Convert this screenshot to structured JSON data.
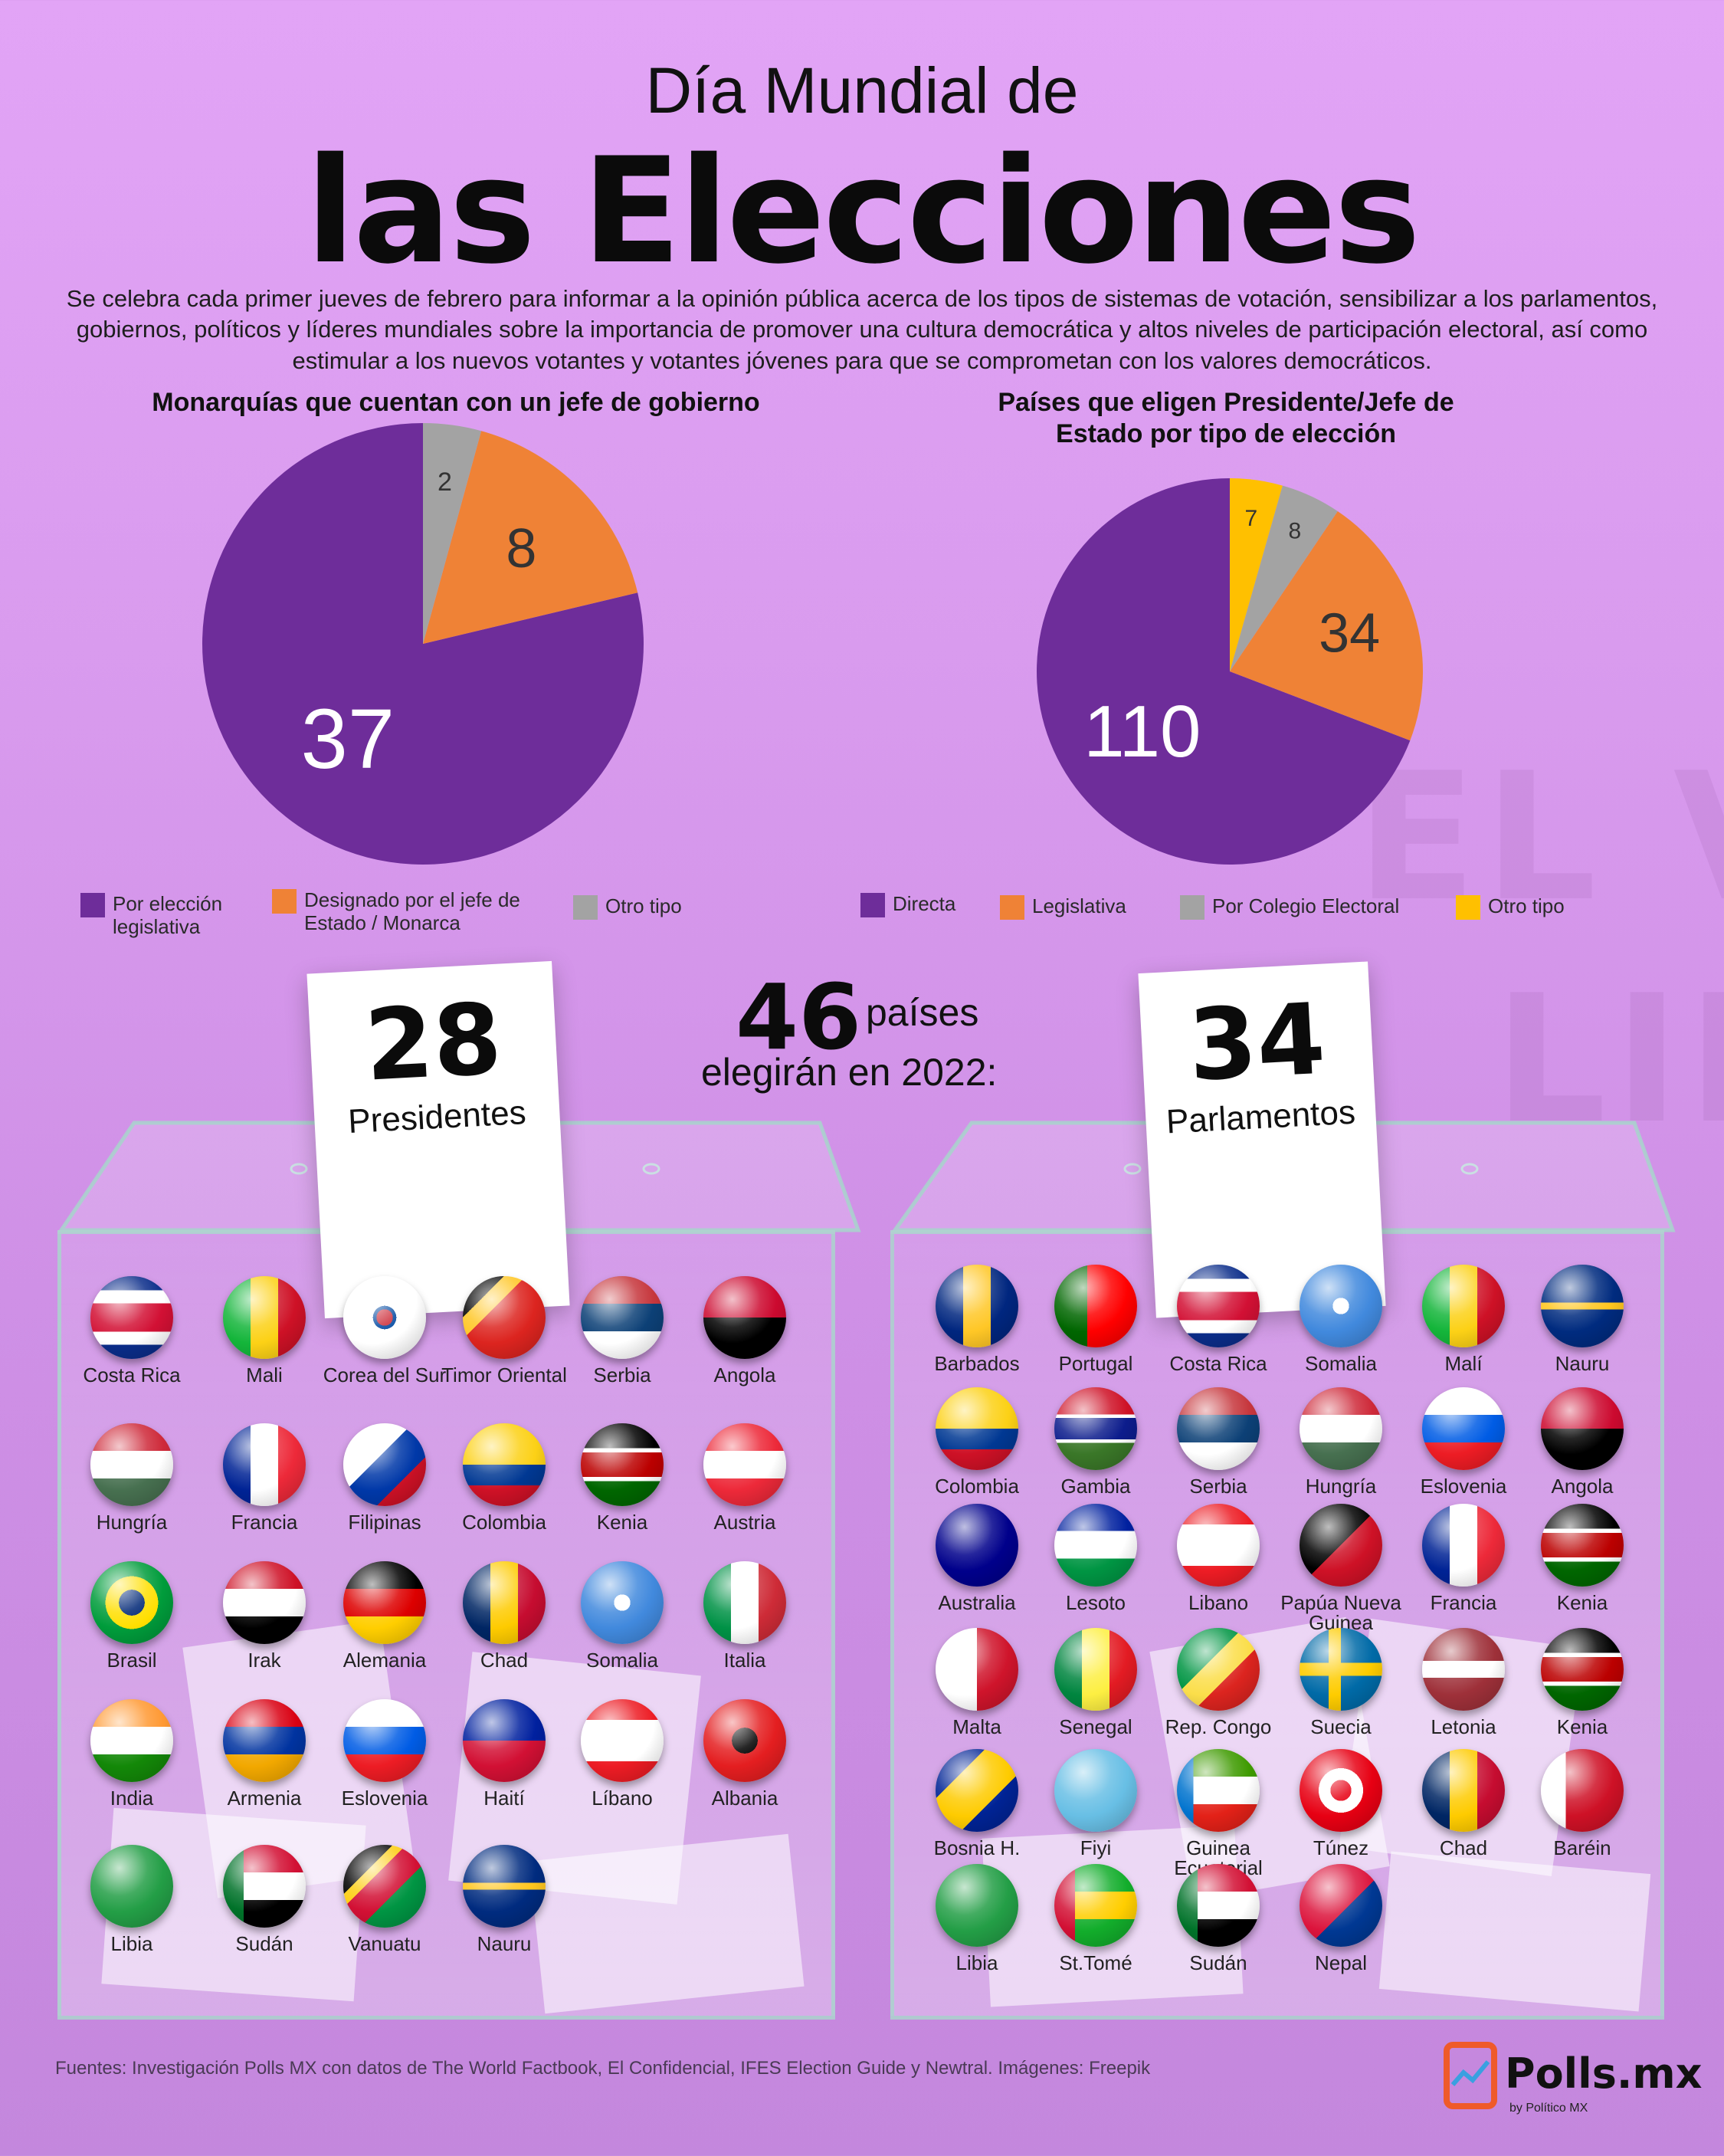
{
  "header": {
    "title_line1": "Día Mundial de",
    "title_line2": "las Elecciones",
    "intro": "Se celebra cada primer jueves de febrero para informar a la opinión pública acerca de los tipos de sistemas de votación, sensibilizar a los parlamentos, gobiernos, políticos y líderes mundiales sobre la importancia de promover una cultura democrática y altos niveles de participación electoral, así como estimular a los nuevos votantes y votantes jóvenes para que se comprometan con los valores democráticos."
  },
  "chart_data": [
    {
      "type": "pie",
      "title": "Monarquías que cuentan con un jefe de gobierno",
      "categories": [
        "Por elección legislativa",
        "Designado por el jefe de Estado / Monarca",
        "Otro tipo"
      ],
      "values": [
        37,
        8,
        2
      ],
      "colors": [
        "#6e2d9a",
        "#ef8236",
        "#a3a3a3"
      ],
      "legend_position": "bottom"
    },
    {
      "type": "pie",
      "title": "Países que eligen Presidente/Jefe de Estado por tipo de elección",
      "categories": [
        "Directa",
        "Legislativa",
        "Por Colegio Electoral",
        "Otro tipo"
      ],
      "values": [
        110,
        34,
        8,
        7
      ],
      "colors": [
        "#6e2d9a",
        "#ef8236",
        "#a3a3a3",
        "#ffc000"
      ],
      "legend_position": "bottom"
    }
  ],
  "legend1": [
    {
      "label": "Por elección legislativa",
      "color": "#6e2d9a"
    },
    {
      "label": "Designado por el jefe de Estado / Monarca",
      "color": "#ef8236"
    },
    {
      "label": "Otro tipo",
      "color": "#a3a3a3"
    }
  ],
  "legend2": [
    {
      "label": "Directa",
      "color": "#6e2d9a"
    },
    {
      "label": "Legislativa",
      "color": "#ef8236"
    },
    {
      "label": "Por Colegio Electoral",
      "color": "#a3a3a3"
    },
    {
      "label": "Otro tipo",
      "color": "#ffc000"
    }
  ],
  "summary": {
    "count": "46",
    "word": "países",
    "line2": "elegirán en 2022:"
  },
  "presidents": {
    "count": "28",
    "label": "Presidentes",
    "countries": [
      "Costa Rica",
      "Mali",
      "Corea del Sur",
      "Timor Oriental",
      "Serbia",
      "Angola",
      "Hungría",
      "Francia",
      "Filipinas",
      "Colombia",
      "Kenia",
      "Austria",
      "Brasil",
      "Irak",
      "Alemania",
      "Chad",
      "Somalia",
      "Italia",
      "India",
      "Armenia",
      "Eslovenia",
      "Haití",
      "Líbano",
      "Albania",
      "Libia",
      "Sudán",
      "Vanuatu",
      "Nauru"
    ]
  },
  "parliaments": {
    "count": "34",
    "label": "Parlamentos",
    "countries": [
      "Barbados",
      "Portugal",
      "Costa Rica",
      "Somalia",
      "Malí",
      "Nauru",
      "Colombia",
      "Gambia",
      "Serbia",
      "Hungría",
      "Eslovenia",
      "Angola",
      "Australia",
      "Lesoto",
      "Libano",
      "Papúa Nueva Guinea",
      "Francia",
      "Kenia",
      "Malta",
      "Senegal",
      "Rep. Congo",
      "Suecia",
      "Letonia",
      "Kenia",
      "Bosnia H.",
      "Fiyi",
      "Guinea Ecuatorial",
      "Túnez",
      "Chad",
      "Baréin",
      "Libia",
      "St.Tomé",
      "Sudán",
      "Nepal"
    ]
  },
  "footer": {
    "sources": "Fuentes: Investigación Polls MX con datos de The World Factbook, El Confidencial, IFES Election Guide y Newtral. Imágenes: Freepik",
    "logo": "Polls.mx",
    "logo_sub": "by Político MX"
  }
}
